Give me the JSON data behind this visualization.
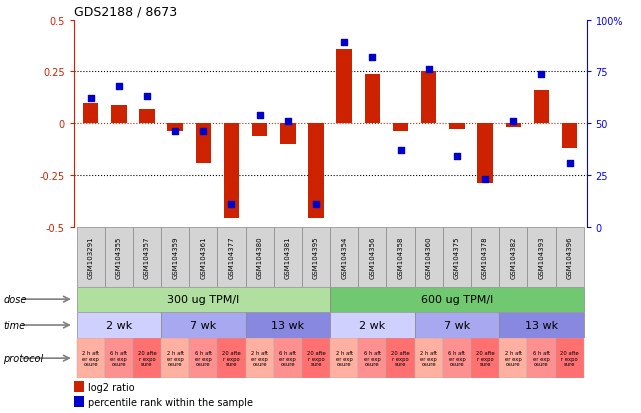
{
  "title": "GDS2188 / 8673",
  "samples": [
    "GSM103291",
    "GSM104355",
    "GSM104357",
    "GSM104359",
    "GSM104361",
    "GSM104377",
    "GSM104380",
    "GSM104381",
    "GSM104395",
    "GSM104354",
    "GSM104356",
    "GSM104358",
    "GSM104360",
    "GSM104375",
    "GSM104378",
    "GSM104382",
    "GSM104393",
    "GSM104396"
  ],
  "log2_ratio": [
    0.1,
    0.09,
    0.07,
    -0.04,
    -0.19,
    -0.46,
    -0.06,
    -0.1,
    -0.46,
    0.36,
    0.24,
    -0.04,
    0.25,
    -0.03,
    -0.29,
    -0.02,
    0.16,
    -0.12
  ],
  "percentile": [
    62,
    68,
    63,
    46,
    46,
    11,
    54,
    51,
    11,
    89,
    82,
    37,
    76,
    34,
    23,
    51,
    74,
    31
  ],
  "dose_info": [
    {
      "label": "300 ug TPM/l",
      "start": 0,
      "end": 9,
      "color": "#b0dfa0"
    },
    {
      "label": "600 ug TPM/l",
      "start": 9,
      "end": 18,
      "color": "#70c870"
    }
  ],
  "time_groups": [
    {
      "label": "2 wk",
      "start": 0,
      "end": 3,
      "color": "#d0d0ff"
    },
    {
      "label": "7 wk",
      "start": 3,
      "end": 6,
      "color": "#a8a8f0"
    },
    {
      "label": "13 wk",
      "start": 6,
      "end": 9,
      "color": "#8888e0"
    },
    {
      "label": "2 wk",
      "start": 9,
      "end": 12,
      "color": "#d0d0ff"
    },
    {
      "label": "7 wk",
      "start": 12,
      "end": 15,
      "color": "#a8a8f0"
    },
    {
      "label": "13 wk",
      "start": 15,
      "end": 18,
      "color": "#8888e0"
    }
  ],
  "protocol_labels": [
    "2 h aft\ner exp\nosure",
    "6 h aft\ner exp\nosure",
    "20 afte\nr expo\nsure",
    "2 h aft\ner exp\nosure",
    "6 h aft\ner exp\nosure",
    "20 afte\nr expo\nsure",
    "2 h aft\ner exp\nosure",
    "6 h aft\ner exp\nosure",
    "20 afte\nr expo\nsure",
    "2 h aft\ner exp\nosure",
    "6 h aft\ner exp\nosure",
    "20 afte\nr expo\nsure",
    "2 h aft\ner exp\nosure",
    "6 h aft\ner exp\nosure",
    "20 afte\nr expo\nsure",
    "2 h aft\ner exp\nosure",
    "6 h aft\ner exp\nosure",
    "20 afte\nr expo\nsure"
  ],
  "protocol_colors": [
    "#ffb0a0",
    "#ff9090",
    "#ff7070"
  ],
  "ylim": [
    -0.5,
    0.5
  ],
  "yticks_left": [
    -0.5,
    -0.25,
    0.0,
    0.25,
    0.5
  ],
  "ytick_labels_left": [
    "-0.5",
    "-0.25",
    "0",
    "0.25",
    "0.5"
  ],
  "yticks_right": [
    0,
    25,
    50,
    75,
    100
  ],
  "ytick_labels_right": [
    "0",
    "25",
    "50",
    "75",
    "100%"
  ],
  "bar_color": "#cc2200",
  "dot_color": "#0000cc",
  "background_color": "#ffffff"
}
